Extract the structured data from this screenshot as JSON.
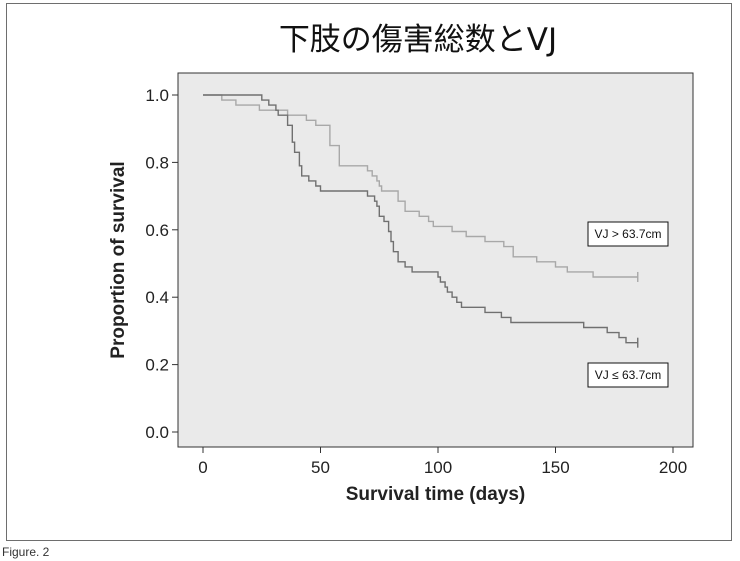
{
  "caption": "Figure. 2",
  "colors": {
    "plot_background": "#eaeaea",
    "series_high": "#a8a8a8",
    "series_low": "#707070",
    "axis": "#333333"
  },
  "chart_data": {
    "type": "line",
    "subtype": "kaplan-meier step",
    "title": "下肢の傷害総数とVJ",
    "xlabel": "Survival time (days)",
    "ylabel": "Proportion of survival",
    "xlim": [
      -10,
      200
    ],
    "ylim": [
      -0.02,
      1.07
    ],
    "xticks": [
      0,
      50,
      100,
      150,
      200
    ],
    "yticks": [
      0.0,
      0.2,
      0.4,
      0.6,
      0.8,
      1.0
    ],
    "xtick_labels": [
      "0",
      "50",
      "100",
      "150",
      "200"
    ],
    "ytick_labels": [
      "0.0",
      "0.2",
      "0.4",
      "0.6",
      "0.8",
      "1.0"
    ],
    "grid": false,
    "legend": "none (series labeled by boxed annotations)",
    "series": [
      {
        "name": "VJ > 63.7cm",
        "color": "#a8a8a8",
        "censor_at_end": true,
        "points": [
          [
            0,
            1.0
          ],
          [
            8,
            1.0
          ],
          [
            8,
            0.985
          ],
          [
            14,
            0.985
          ],
          [
            14,
            0.97
          ],
          [
            24,
            0.97
          ],
          [
            24,
            0.955
          ],
          [
            36,
            0.955
          ],
          [
            36,
            0.94
          ],
          [
            44,
            0.94
          ],
          [
            44,
            0.925
          ],
          [
            48,
            0.925
          ],
          [
            48,
            0.91
          ],
          [
            54,
            0.91
          ],
          [
            54,
            0.85
          ],
          [
            58,
            0.85
          ],
          [
            58,
            0.79
          ],
          [
            70,
            0.79
          ],
          [
            70,
            0.775
          ],
          [
            72,
            0.775
          ],
          [
            72,
            0.76
          ],
          [
            74,
            0.76
          ],
          [
            74,
            0.745
          ],
          [
            75,
            0.745
          ],
          [
            75,
            0.73
          ],
          [
            76,
            0.73
          ],
          [
            76,
            0.715
          ],
          [
            83,
            0.715
          ],
          [
            83,
            0.685
          ],
          [
            86,
            0.685
          ],
          [
            86,
            0.655
          ],
          [
            92,
            0.655
          ],
          [
            92,
            0.64
          ],
          [
            96,
            0.64
          ],
          [
            96,
            0.625
          ],
          [
            98,
            0.625
          ],
          [
            98,
            0.61
          ],
          [
            106,
            0.61
          ],
          [
            106,
            0.595
          ],
          [
            112,
            0.595
          ],
          [
            112,
            0.58
          ],
          [
            120,
            0.58
          ],
          [
            120,
            0.565
          ],
          [
            128,
            0.565
          ],
          [
            128,
            0.55
          ],
          [
            132,
            0.55
          ],
          [
            132,
            0.52
          ],
          [
            142,
            0.52
          ],
          [
            142,
            0.505
          ],
          [
            150,
            0.505
          ],
          [
            150,
            0.49
          ],
          [
            155,
            0.49
          ],
          [
            155,
            0.475
          ],
          [
            166,
            0.475
          ],
          [
            166,
            0.46
          ],
          [
            185,
            0.46
          ]
        ]
      },
      {
        "name": "VJ ≤ 63.7cm",
        "color": "#707070",
        "censor_at_end": true,
        "points": [
          [
            0,
            1.0
          ],
          [
            25,
            1.0
          ],
          [
            25,
            0.985
          ],
          [
            28,
            0.985
          ],
          [
            28,
            0.97
          ],
          [
            31,
            0.97
          ],
          [
            31,
            0.955
          ],
          [
            32,
            0.955
          ],
          [
            32,
            0.94
          ],
          [
            36,
            0.94
          ],
          [
            36,
            0.91
          ],
          [
            38,
            0.91
          ],
          [
            38,
            0.86
          ],
          [
            39,
            0.86
          ],
          [
            39,
            0.83
          ],
          [
            41,
            0.83
          ],
          [
            41,
            0.79
          ],
          [
            42,
            0.79
          ],
          [
            42,
            0.76
          ],
          [
            45,
            0.76
          ],
          [
            45,
            0.745
          ],
          [
            48,
            0.745
          ],
          [
            48,
            0.73
          ],
          [
            50,
            0.73
          ],
          [
            50,
            0.715
          ],
          [
            70,
            0.715
          ],
          [
            70,
            0.7
          ],
          [
            73,
            0.7
          ],
          [
            73,
            0.685
          ],
          [
            74,
            0.685
          ],
          [
            74,
            0.67
          ],
          [
            75,
            0.67
          ],
          [
            75,
            0.64
          ],
          [
            77,
            0.64
          ],
          [
            77,
            0.625
          ],
          [
            79,
            0.625
          ],
          [
            79,
            0.595
          ],
          [
            80,
            0.595
          ],
          [
            80,
            0.565
          ],
          [
            81,
            0.565
          ],
          [
            81,
            0.535
          ],
          [
            83,
            0.535
          ],
          [
            83,
            0.505
          ],
          [
            86,
            0.505
          ],
          [
            86,
            0.49
          ],
          [
            89,
            0.49
          ],
          [
            89,
            0.475
          ],
          [
            100,
            0.475
          ],
          [
            100,
            0.46
          ],
          [
            101,
            0.46
          ],
          [
            101,
            0.445
          ],
          [
            103,
            0.445
          ],
          [
            103,
            0.43
          ],
          [
            104,
            0.43
          ],
          [
            104,
            0.415
          ],
          [
            106,
            0.415
          ],
          [
            106,
            0.4
          ],
          [
            108,
            0.4
          ],
          [
            108,
            0.385
          ],
          [
            110,
            0.385
          ],
          [
            110,
            0.37
          ],
          [
            120,
            0.37
          ],
          [
            120,
            0.355
          ],
          [
            127,
            0.355
          ],
          [
            127,
            0.34
          ],
          [
            131,
            0.34
          ],
          [
            131,
            0.325
          ],
          [
            162,
            0.325
          ],
          [
            162,
            0.31
          ],
          [
            172,
            0.31
          ],
          [
            172,
            0.295
          ],
          [
            177,
            0.295
          ],
          [
            177,
            0.28
          ],
          [
            180,
            0.28
          ],
          [
            180,
            0.265
          ],
          [
            185,
            0.265
          ]
        ]
      }
    ],
    "annotations": [
      {
        "text": "VJ > 63.7cm",
        "series": 0
      },
      {
        "text": "VJ ≤ 63.7cm",
        "series": 1
      }
    ]
  }
}
